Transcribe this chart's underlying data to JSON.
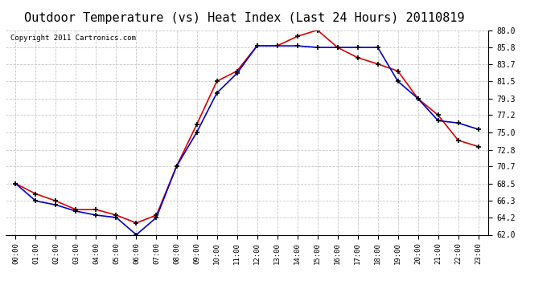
{
  "title": "Outdoor Temperature (vs) Heat Index (Last 24 Hours) 20110819",
  "copyright": "Copyright 2011 Cartronics.com",
  "hours": [
    "00:00",
    "01:00",
    "02:00",
    "03:00",
    "04:00",
    "05:00",
    "06:00",
    "07:00",
    "08:00",
    "09:00",
    "10:00",
    "11:00",
    "12:00",
    "13:00",
    "14:00",
    "15:00",
    "16:00",
    "17:00",
    "18:00",
    "19:00",
    "20:00",
    "21:00",
    "22:00",
    "23:00"
  ],
  "temp_red": [
    68.5,
    67.2,
    66.3,
    65.2,
    65.2,
    64.5,
    63.5,
    64.5,
    70.7,
    76.0,
    81.5,
    82.8,
    86.0,
    86.0,
    87.2,
    88.0,
    85.8,
    84.5,
    83.7,
    82.8,
    79.3,
    77.2,
    74.0,
    73.2
  ],
  "heat_blue": [
    68.5,
    66.3,
    65.8,
    65.0,
    64.5,
    64.2,
    62.0,
    64.2,
    70.7,
    75.0,
    80.0,
    82.5,
    86.0,
    86.0,
    86.0,
    85.8,
    85.8,
    85.8,
    85.8,
    81.5,
    79.3,
    76.5,
    76.2,
    75.4
  ],
  "ylim": [
    62.0,
    88.0
  ],
  "yticks": [
    62.0,
    64.2,
    66.3,
    68.5,
    70.7,
    72.8,
    75.0,
    77.2,
    79.3,
    81.5,
    83.7,
    85.8,
    88.0
  ],
  "bg_color": "#ffffff",
  "plot_bg": "#ffffff",
  "grid_color": "#bbbbbb",
  "red_color": "#dd0000",
  "blue_color": "#0000cc",
  "title_fontsize": 11,
  "copyright_fontsize": 6.5
}
